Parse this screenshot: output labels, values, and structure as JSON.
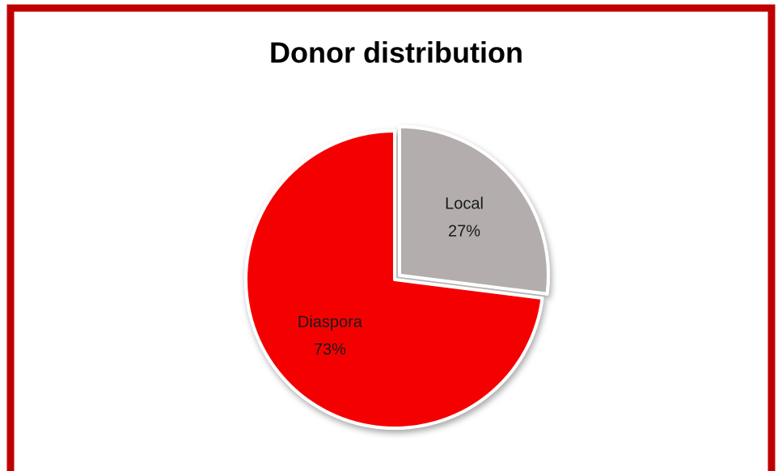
{
  "chart_data": {
    "type": "pie",
    "title": "Donor distribution",
    "categories": [
      "Local",
      "Diaspora"
    ],
    "values": [
      27,
      73
    ],
    "value_labels": [
      "27%",
      "73%"
    ],
    "colors": [
      "#b3adad",
      "#f50000"
    ]
  }
}
